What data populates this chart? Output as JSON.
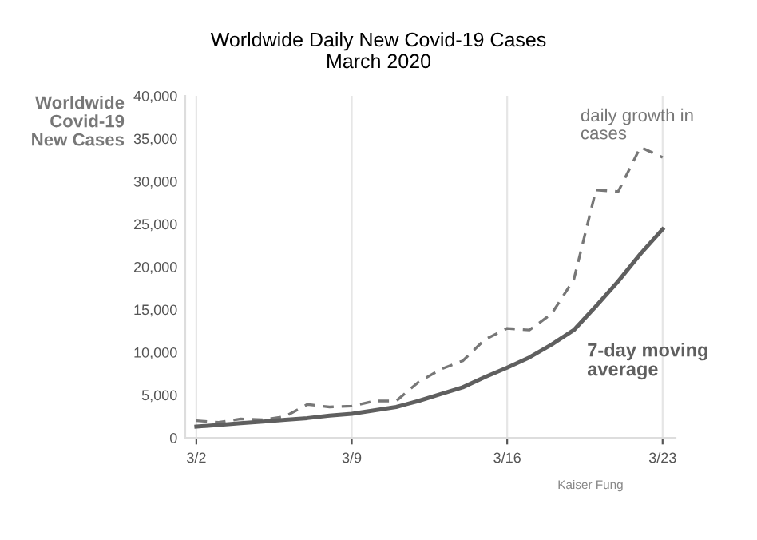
{
  "chart_data": {
    "type": "line",
    "title": "Worldwide Daily New Covid-19 Cases\nMarch 2020",
    "ylabel": "Worldwide\nCovid-19\nNew Cases",
    "x": [
      "2020-03-02",
      "2020-03-03",
      "2020-03-04",
      "2020-03-05",
      "2020-03-06",
      "2020-03-07",
      "2020-03-08",
      "2020-03-09",
      "2020-03-10",
      "2020-03-11",
      "2020-03-12",
      "2020-03-13",
      "2020-03-14",
      "2020-03-15",
      "2020-03-16",
      "2020-03-17",
      "2020-03-18",
      "2020-03-19",
      "2020-03-20",
      "2020-03-21",
      "2020-03-22",
      "2020-03-23"
    ],
    "series": [
      {
        "name": "daily growth in\ncases",
        "color": "#777777",
        "line_style": "dashed",
        "values": [
          2000,
          1800,
          2200,
          2100,
          2500,
          3900,
          3600,
          3700,
          4300,
          4300,
          6500,
          8000,
          9000,
          11500,
          12800,
          12600,
          14500,
          18500,
          29000,
          28800,
          34000,
          32800
        ]
      },
      {
        "name": "7-day moving\naverage",
        "color": "#5f5f5f",
        "line_style": "solid",
        "values": [
          1300,
          1500,
          1700,
          1900,
          2100,
          2300,
          2600,
          2800,
          3200,
          3600,
          4300,
          5100,
          5900,
          7100,
          8200,
          9400,
          10900,
          12600,
          15400,
          18300,
          21500,
          24400
        ]
      }
    ],
    "xlim": [
      "2020-03-01T12:00",
      "2020-03-23T14:00"
    ],
    "xticks": [
      {
        "value": "2020-03-02",
        "label": "3/2"
      },
      {
        "value": "2020-03-09",
        "label": "3/9"
      },
      {
        "value": "2020-03-16",
        "label": "3/16"
      },
      {
        "value": "2020-03-23",
        "label": "3/23"
      }
    ],
    "ylim": [
      0,
      40000
    ],
    "yticks": [
      {
        "value": 0,
        "label": "0"
      },
      {
        "value": 5000,
        "label": "5,000"
      },
      {
        "value": 10000,
        "label": "10,000"
      },
      {
        "value": 15000,
        "label": "15,000"
      },
      {
        "value": 20000,
        "label": "20,000"
      },
      {
        "value": 25000,
        "label": "25,000"
      },
      {
        "value": 30000,
        "label": "30,000"
      },
      {
        "value": 35000,
        "label": "35,000"
      },
      {
        "value": 40000,
        "label": "40,000"
      }
    ],
    "grid": "x",
    "legend": false,
    "marker": "none",
    "annotations": [
      "Kaiser Fung"
    ]
  }
}
